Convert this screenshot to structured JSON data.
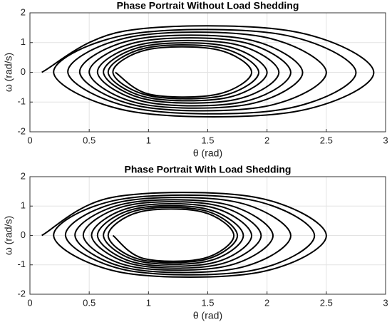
{
  "chart_data": [
    {
      "type": "line",
      "title": "Phase Portrait Without Load Shedding",
      "x_label": "θ  (rad)",
      "y_label": "ω (rad/s)",
      "x": [
        0.1,
        0.8,
        2.2,
        2.9,
        2.225,
        0.875,
        0.2,
        0.84,
        2.11,
        2.75,
        2.14,
        0.93,
        0.32,
        0.865,
        1.955,
        2.5,
        1.98,
        0.94,
        0.42,
        0.89,
        1.83,
        2.3,
        1.85,
        0.95,
        0.5,
        0.925,
        1.775,
        2.2,
        1.79,
        0.98,
        0.57,
        0.95,
        1.72,
        2.1,
        1.73,
        0.99,
        0.62,
        0.965,
        1.655,
        2.0,
        1.665,
        0.995,
        0.66,
        0.98,
        1.61,
        1.93,
        1.62,
        1.01,
        0.7,
        0.99,
        1.58,
        1.87,
        1.58,
        1.01,
        0.72
      ],
      "values": [
        0,
        1.39,
        1.39,
        0,
        -1.33,
        -1.33,
        0,
        1.28,
        1.28,
        0,
        -1.24,
        -1.24,
        0,
        1.2,
        1.2,
        0,
        -1.15,
        -1.15,
        0,
        1.11,
        1.11,
        0,
        -1.07,
        -1.07,
        0,
        1.03,
        1.03,
        0,
        -1.0,
        -1.0,
        0,
        0.95,
        0.95,
        0,
        -0.92,
        -0.92,
        0,
        0.88,
        0.88,
        0,
        -0.85,
        -0.85,
        0,
        0.82,
        0.82,
        0,
        -0.79,
        -0.79,
        0,
        0.76,
        0.76,
        0,
        -0.74,
        -0.74,
        0
      ],
      "color": "#000000",
      "xlim": [
        0,
        3
      ],
      "ylim": [
        -2,
        2
      ],
      "xticks": [
        0,
        0.5,
        1,
        1.5,
        2,
        2.5,
        3
      ],
      "yticks": [
        -2,
        -1,
        0,
        1,
        2
      ],
      "grid": true
    },
    {
      "type": "line",
      "title": "Phase Portrait With Load Shedding",
      "x_label": "θ  (rad)",
      "y_label": "ω (rad/s)",
      "x": [
        0.1,
        0.7,
        1.9,
        2.5,
        1.925,
        0.775,
        0.2,
        0.75,
        1.85,
        2.4,
        1.875,
        0.825,
        0.3,
        0.775,
        1.725,
        2.2,
        1.745,
        0.835,
        0.38,
        0.8,
        1.63,
        2.05,
        1.65,
        0.85,
        0.45,
        0.825,
        1.575,
        1.95,
        1.59,
        0.88,
        0.52,
        0.86,
        1.53,
        1.87,
        1.545,
        0.895,
        0.57,
        0.88,
        1.49,
        1.8,
        1.505,
        0.915,
        0.62,
        0.9,
        1.47,
        1.75,
        1.48,
        0.93,
        0.66,
        0.925,
        1.455,
        1.72,
        1.465,
        0.955,
        0.7
      ],
      "values": [
        0,
        1.3,
        1.3,
        0,
        -1.26,
        -1.26,
        0,
        1.22,
        1.22,
        0,
        -1.19,
        -1.19,
        0,
        1.15,
        1.15,
        0,
        -1.12,
        -1.12,
        0,
        1.08,
        1.08,
        0,
        -1.05,
        -1.05,
        0,
        1.02,
        1.02,
        0,
        -0.99,
        -0.99,
        0,
        0.96,
        0.96,
        0,
        -0.93,
        -0.93,
        0,
        0.9,
        0.9,
        0,
        -0.87,
        -0.87,
        0,
        0.85,
        0.85,
        0,
        -0.82,
        -0.82,
        0,
        0.8,
        0.8,
        0,
        -0.78,
        -0.78,
        0
      ],
      "color": "#000000",
      "xlim": [
        0,
        3
      ],
      "ylim": [
        -2,
        2
      ],
      "xticks": [
        0,
        0.5,
        1,
        1.5,
        2,
        2.5,
        3
      ],
      "yticks": [
        -2,
        -1,
        0,
        1,
        2
      ],
      "grid": true
    }
  ]
}
